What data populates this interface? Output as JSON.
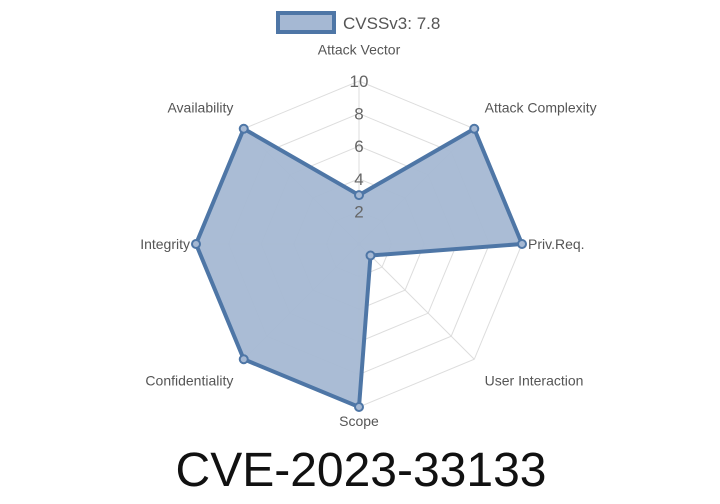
{
  "chart_data": {
    "type": "radar",
    "title": "CVE-2023-33133",
    "categories": [
      "Attack Vector",
      "Attack Complexity",
      "Priv.Req.",
      "User Interaction",
      "Scope",
      "Confidentiality",
      "Integrity",
      "Availability"
    ],
    "series": [
      {
        "name": "CVSSv3: 7.8",
        "values": [
          3,
          10,
          10,
          1,
          10,
          10,
          10,
          10
        ]
      }
    ],
    "r_ticks": [
      "2",
      "4",
      "6",
      "8",
      "10"
    ],
    "rlim": [
      0,
      10
    ],
    "legend": "top",
    "grid": true,
    "colors": {
      "line": "#4e76a6",
      "fill": "#a5b8d3",
      "grid": "#dddddd"
    }
  }
}
